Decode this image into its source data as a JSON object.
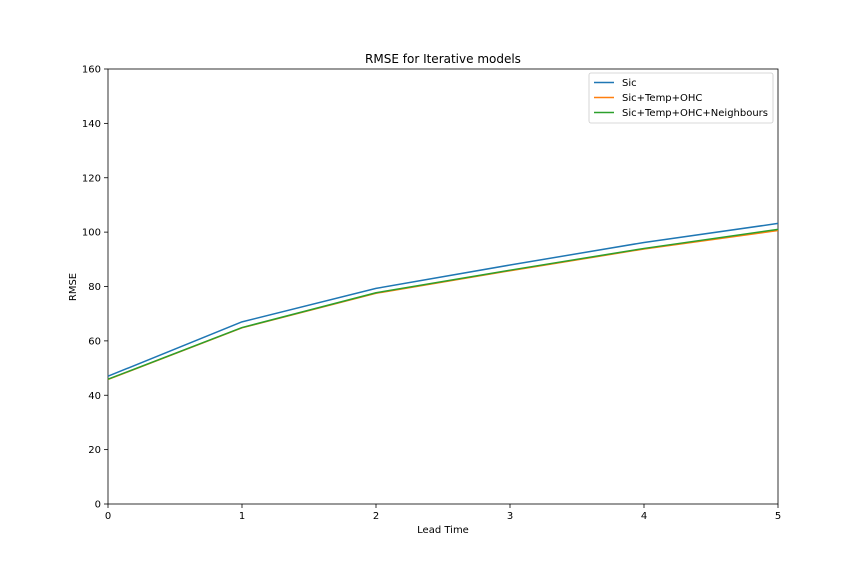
{
  "chart_data": {
    "type": "line",
    "title": "RMSE for Iterative models",
    "xlabel": "Lead Time",
    "ylabel": "RMSE",
    "xlim": [
      0,
      5
    ],
    "ylim": [
      0,
      160
    ],
    "xticks": [
      "0",
      "1",
      "2",
      "3",
      "4",
      "5"
    ],
    "yticks": [
      "0",
      "20",
      "40",
      "60",
      "80",
      "100",
      "120",
      "140",
      "160"
    ],
    "x": [
      0,
      1,
      2,
      3,
      4,
      5
    ],
    "grid": false,
    "legend_position": "top-right",
    "series": [
      {
        "name": "Sic",
        "color": "#1f77b4",
        "values": [
          47.0,
          67.0,
          79.3,
          87.9,
          96.2,
          103.2
        ]
      },
      {
        "name": "Sic+Temp+OHC",
        "color": "#ff7f0e",
        "values": [
          45.8,
          64.8,
          77.5,
          85.8,
          93.8,
          100.6
        ]
      },
      {
        "name": "Sic+Temp+OHC+Neighbours",
        "color": "#2ca02c",
        "values": [
          45.9,
          64.9,
          77.7,
          86.0,
          94.0,
          101.0
        ]
      }
    ]
  }
}
